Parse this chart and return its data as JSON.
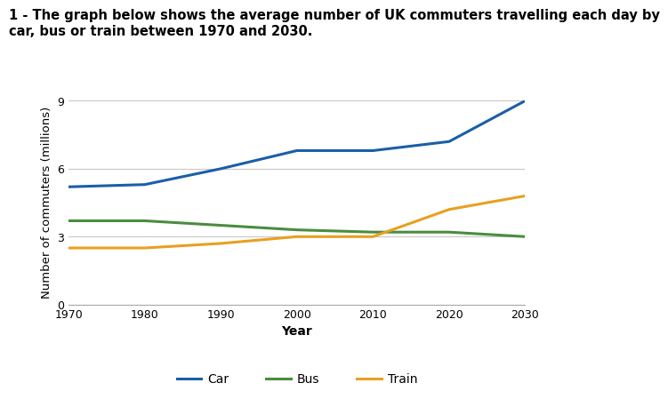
{
  "title_line1": "1 - The graph below shows the average number of UK commuters travelling each day by",
  "title_line2": "car, bus or train between 1970 and 2030.",
  "xlabel": "Year",
  "ylabel": "Number of commuters (millions)",
  "years": [
    1970,
    1980,
    1990,
    2000,
    2010,
    2020,
    2030
  ],
  "car": [
    5.2,
    5.3,
    6.0,
    6.8,
    6.8,
    7.2,
    9.0
  ],
  "bus": [
    3.7,
    3.7,
    3.5,
    3.3,
    3.2,
    3.2,
    3.0
  ],
  "train": [
    2.5,
    2.5,
    2.7,
    3.0,
    3.0,
    4.2,
    4.8
  ],
  "car_color": "#1a5fa8",
  "bus_color": "#4a8c3f",
  "train_color": "#e8a020",
  "ylim": [
    0,
    9
  ],
  "yticks": [
    0,
    3,
    6,
    9
  ],
  "xticks": [
    1970,
    1980,
    1990,
    2000,
    2010,
    2020,
    2030
  ],
  "grid_color": "#c8c8c8",
  "background_color": "#ffffff",
  "title_fontsize": 10.5,
  "axis_label_fontsize": 10,
  "tick_fontsize": 9,
  "legend_fontsize": 10,
  "line_width": 2.2
}
